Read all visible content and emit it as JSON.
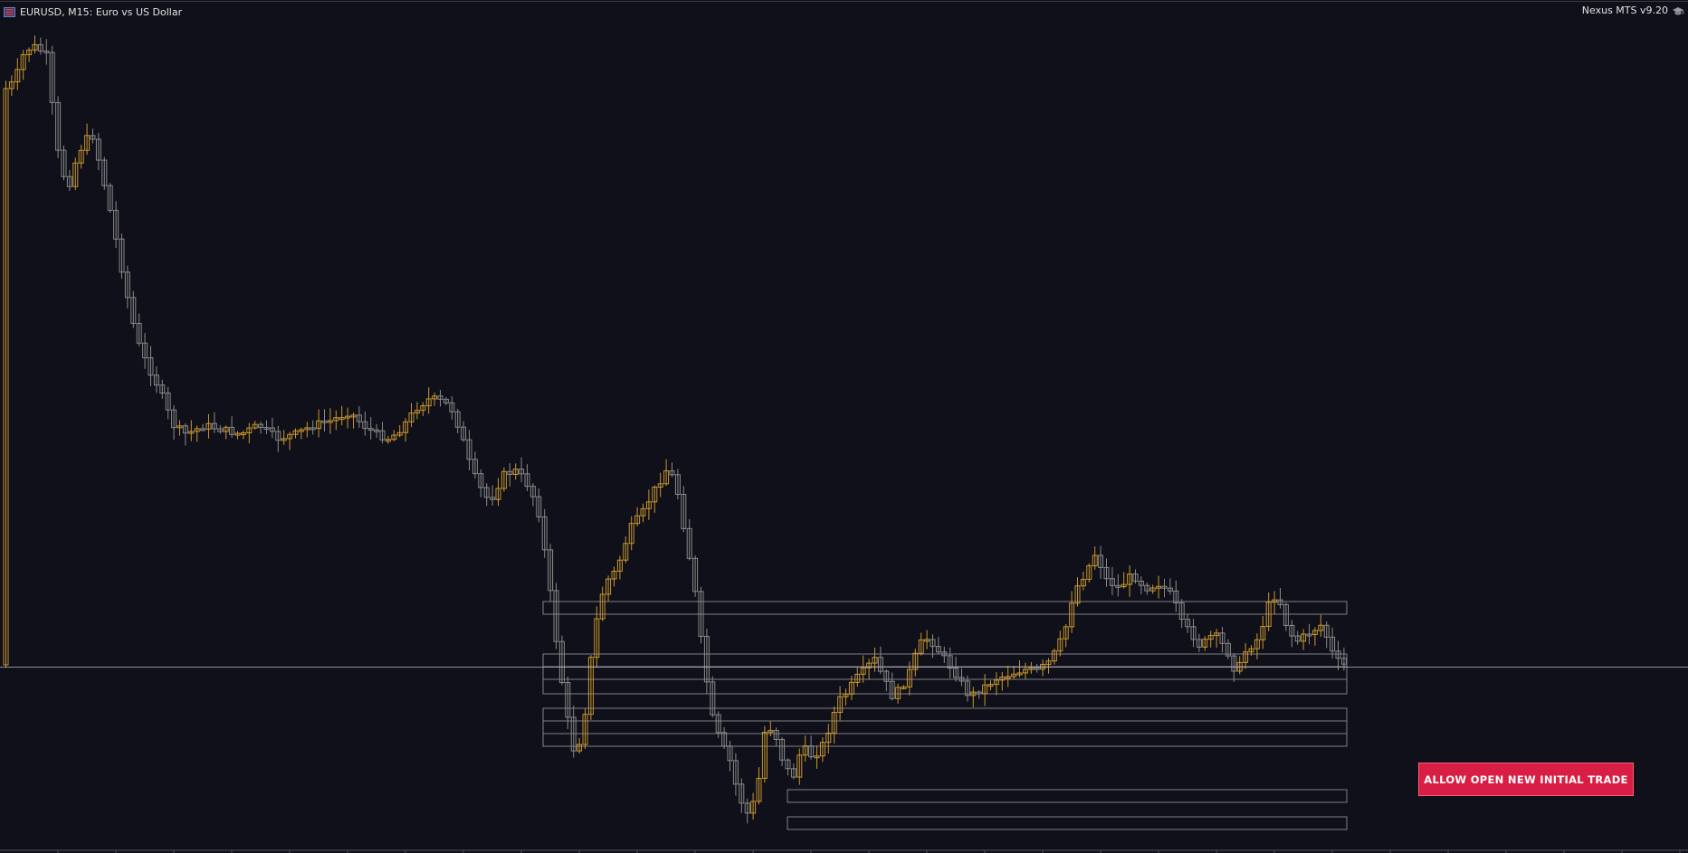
{
  "header": {
    "symbol_title": "EURUSD, M15:  Euro vs US Dollar",
    "brand": "Nexus MTS v9.20",
    "symbol_icon": "chart-bars-icon",
    "brand_icon": "graduation-cap-icon"
  },
  "colors": {
    "background": "#0f1019",
    "bull_candle": "#c9962e",
    "bear_candle": "#8a8a8a",
    "zone_border": "#7f7f86",
    "button": "#d81e44"
  },
  "button": {
    "label": "ALLOW OPEN NEW INITIAL TRADE"
  }
}
